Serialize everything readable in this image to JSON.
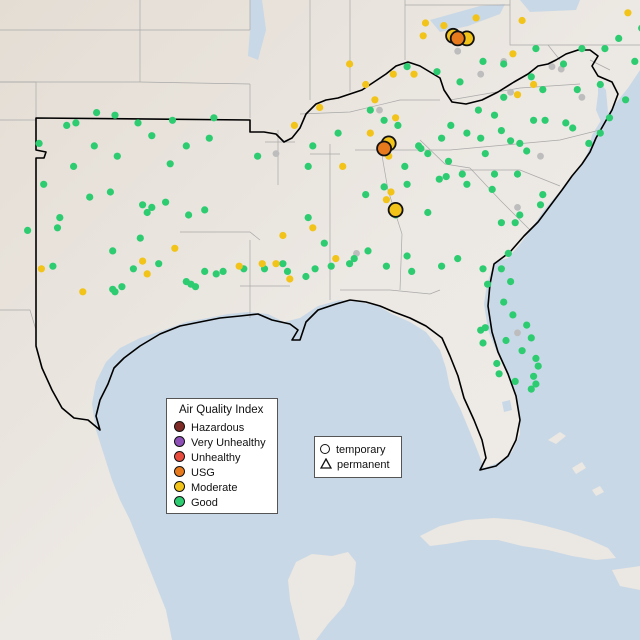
{
  "legend": {
    "title": "Air Quality Index",
    "categories": [
      {
        "label": "Hazardous",
        "color": "#7e2a26"
      },
      {
        "label": "Very Unhealthy",
        "color": "#8e4fb6"
      },
      {
        "label": "Unhealthy",
        "color": "#e84c3d"
      },
      {
        "label": "USG",
        "color": "#e87a1e"
      },
      {
        "label": "Moderate",
        "color": "#f2c318"
      },
      {
        "label": "Good",
        "color": "#2ecc71"
      }
    ]
  },
  "monitor_types": [
    {
      "label": "temporary",
      "shape": "circle"
    },
    {
      "label": "permanent",
      "shape": "triangle"
    }
  ],
  "colors": {
    "water": "#c9d8e6",
    "land": "#ebe7e2",
    "no_data": "#bdbdbd"
  },
  "stations": {
    "good": [
      [
        -100.6,
        35.9
      ],
      [
        -100.2,
        36.0
      ],
      [
        -99.3,
        36.4
      ],
      [
        -98.5,
        36.3
      ],
      [
        -97.5,
        36.0
      ],
      [
        -96.9,
        35.5
      ],
      [
        -96.0,
        36.1
      ],
      [
        -95.4,
        35.1
      ],
      [
        -94.4,
        35.4
      ],
      [
        -99.4,
        35.1
      ],
      [
        -100.3,
        34.3
      ],
      [
        -98.4,
        34.7
      ],
      [
        -96.1,
        34.4
      ],
      [
        -101.8,
        35.2
      ],
      [
        -101.6,
        33.6
      ],
      [
        -100.9,
        32.3
      ],
      [
        -99.6,
        33.1
      ],
      [
        -98.7,
        33.3
      ],
      [
        -97.3,
        32.8
      ],
      [
        -96.9,
        32.7
      ],
      [
        -97.1,
        32.5
      ],
      [
        -96.3,
        32.9
      ],
      [
        -95.3,
        32.4
      ],
      [
        -94.6,
        32.6
      ],
      [
        -97.4,
        31.5
      ],
      [
        -98.6,
        31.0
      ],
      [
        -101.0,
        31.9
      ],
      [
        -102.3,
        31.8
      ],
      [
        -101.2,
        30.4
      ],
      [
        -98.6,
        29.5
      ],
      [
        -98.5,
        29.4
      ],
      [
        -98.2,
        29.6
      ],
      [
        -97.7,
        30.3
      ],
      [
        -96.6,
        30.5
      ],
      [
        -95.4,
        29.8
      ],
      [
        -95.2,
        29.7
      ],
      [
        -95.0,
        29.6
      ],
      [
        -94.6,
        30.2
      ],
      [
        -94.1,
        30.1
      ],
      [
        -93.8,
        30.2
      ],
      [
        -92.9,
        30.3
      ],
      [
        -92.0,
        30.3
      ],
      [
        -91.2,
        30.5
      ],
      [
        -91.0,
        30.2
      ],
      [
        -90.2,
        30.0
      ],
      [
        -89.8,
        30.3
      ],
      [
        -89.1,
        30.4
      ],
      [
        -88.3,
        30.5
      ],
      [
        -88.1,
        30.7
      ],
      [
        -86.7,
        30.4
      ],
      [
        -85.8,
        30.8
      ],
      [
        -85.6,
        30.2
      ],
      [
        -84.3,
        30.4
      ],
      [
        -83.6,
        30.7
      ],
      [
        -82.5,
        30.3
      ],
      [
        -81.7,
        30.3
      ],
      [
        -81.4,
        30.9
      ],
      [
        -81.3,
        29.8
      ],
      [
        -81.6,
        29.0
      ],
      [
        -81.2,
        28.5
      ],
      [
        -82.4,
        28.0
      ],
      [
        -82.6,
        27.9
      ],
      [
        -82.5,
        27.4
      ],
      [
        -81.9,
        26.6
      ],
      [
        -81.8,
        26.2
      ],
      [
        -80.8,
        27.1
      ],
      [
        -80.2,
        26.8
      ],
      [
        -80.1,
        26.5
      ],
      [
        -80.3,
        26.1
      ],
      [
        -80.4,
        25.6
      ],
      [
        -80.2,
        25.8
      ],
      [
        -81.1,
        25.9
      ],
      [
        -87.6,
        33.2
      ],
      [
        -86.8,
        33.5
      ],
      [
        -85.8,
        33.6
      ],
      [
        -84.9,
        32.5
      ],
      [
        -84.4,
        33.8
      ],
      [
        -84.1,
        33.9
      ],
      [
        -83.4,
        34.0
      ],
      [
        -83.2,
        33.6
      ],
      [
        -82.1,
        33.4
      ],
      [
        -81.7,
        32.1
      ],
      [
        -81.1,
        32.1
      ],
      [
        -80.9,
        32.4
      ],
      [
        -80.0,
        32.8
      ],
      [
        -79.9,
        33.2
      ],
      [
        -81.0,
        34.0
      ],
      [
        -82.4,
        34.8
      ],
      [
        -82.6,
        35.4
      ],
      [
        -81.7,
        35.7
      ],
      [
        -80.9,
        35.2
      ],
      [
        -80.3,
        36.1
      ],
      [
        -79.8,
        36.1
      ],
      [
        -78.9,
        36.0
      ],
      [
        -78.6,
        35.8
      ],
      [
        -77.9,
        35.2
      ],
      [
        -77.4,
        35.6
      ],
      [
        -77.0,
        36.2
      ],
      [
        -76.3,
        36.9
      ],
      [
        -77.4,
        37.5
      ],
      [
        -78.4,
        37.3
      ],
      [
        -79.9,
        37.3
      ],
      [
        -81.6,
        37.0
      ],
      [
        -80.4,
        37.8
      ],
      [
        -82.7,
        36.5
      ],
      [
        -83.9,
        35.9
      ],
      [
        -84.3,
        35.4
      ],
      [
        -85.2,
        35.0
      ],
      [
        -85.3,
        35.1
      ],
      [
        -86.2,
        35.9
      ],
      [
        -86.8,
        36.1
      ],
      [
        -87.4,
        36.5
      ],
      [
        -88.8,
        35.6
      ],
      [
        -89.9,
        35.1
      ],
      [
        -90.1,
        34.3
      ],
      [
        -90.1,
        32.3
      ],
      [
        -89.4,
        31.3
      ],
      [
        -92.3,
        34.7
      ],
      [
        -94.2,
        36.2
      ],
      [
        -84.5,
        38.0
      ],
      [
        -85.8,
        38.2
      ],
      [
        -83.5,
        37.6
      ],
      [
        -82.5,
        38.4
      ],
      [
        -81.6,
        38.3
      ],
      [
        -80.2,
        38.9
      ],
      [
        -79.0,
        38.3
      ],
      [
        -78.2,
        38.9
      ],
      [
        -77.2,
        38.9
      ],
      [
        -76.6,
        39.3
      ],
      [
        -75.6,
        39.7
      ],
      [
        -75.9,
        38.4
      ],
      [
        -83.2,
        35.6
      ],
      [
        -82.0,
        36.3
      ],
      [
        -81.3,
        35.3
      ],
      [
        -80.6,
        34.9
      ],
      [
        -82.0,
        34.0
      ],
      [
        -84.9,
        34.8
      ],
      [
        -85.9,
        34.3
      ],
      [
        -84.0,
        34.5
      ],
      [
        -86.3,
        32.4
      ],
      [
        -87.5,
        31.0
      ],
      [
        -82.3,
        29.7
      ],
      [
        -80.6,
        28.1
      ],
      [
        -80.4,
        27.6
      ],
      [
        -81.5,
        27.5
      ]
    ],
    "moderate": [
      [
        -85.0,
        39.9
      ],
      [
        -84.2,
        39.8
      ],
      [
        -82.8,
        40.1
      ],
      [
        -80.8,
        40.0
      ],
      [
        -76.2,
        40.3
      ],
      [
        -75.3,
        40.6
      ],
      [
        -85.1,
        39.4
      ],
      [
        -86.4,
        37.9
      ],
      [
        -88.3,
        38.3
      ],
      [
        -87.6,
        37.5
      ],
      [
        -87.2,
        36.9
      ],
      [
        -86.3,
        36.2
      ],
      [
        -87.4,
        35.6
      ],
      [
        -89.6,
        36.6
      ],
      [
        -90.7,
        35.9
      ],
      [
        -88.6,
        34.3
      ],
      [
        -89.9,
        31.9
      ],
      [
        -91.2,
        31.6
      ],
      [
        -91.5,
        30.5
      ],
      [
        -92.1,
        30.5
      ],
      [
        -93.1,
        30.4
      ],
      [
        -95.9,
        31.1
      ],
      [
        -97.3,
        30.6
      ],
      [
        -97.1,
        30.1
      ],
      [
        -101.7,
        30.3
      ],
      [
        -99.9,
        29.4
      ],
      [
        -86.6,
        34.7
      ],
      [
        -86.5,
        33.3
      ],
      [
        -86.7,
        33.0
      ],
      [
        -85.5,
        37.9
      ],
      [
        -88.9,
        30.7
      ],
      [
        -81.2,
        38.7
      ],
      [
        -80.3,
        37.5
      ],
      [
        -81.0,
        37.1
      ],
      [
        -90.9,
        29.9
      ]
    ],
    "moderate_temporary": [
      [
        -83.2,
        39.3
      ],
      [
        -83.8,
        39.4
      ],
      [
        -86.6,
        35.2
      ],
      [
        -86.3,
        32.6
      ]
    ],
    "usg_temporary": [
      [
        -83.6,
        39.3
      ],
      [
        -86.8,
        35.0
      ]
    ],
    "no_data": [
      [
        -83.6,
        38.8
      ],
      [
        -81.6,
        38.4
      ],
      [
        -82.6,
        37.9
      ],
      [
        -79.1,
        38.1
      ],
      [
        -78.2,
        37.0
      ],
      [
        -81.3,
        37.2
      ],
      [
        -81.0,
        32.7
      ],
      [
        -80.0,
        34.7
      ],
      [
        -87.0,
        36.5
      ],
      [
        -91.5,
        34.8
      ],
      [
        -88.0,
        30.9
      ],
      [
        -81.0,
        27.8
      ],
      [
        -79.5,
        38.2
      ]
    ]
  }
}
